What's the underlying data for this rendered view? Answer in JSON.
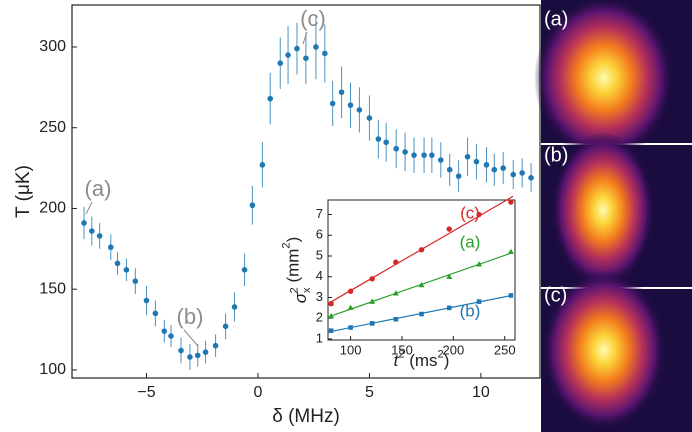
{
  "chart_data": [
    {
      "type": "scatter",
      "x_label": "δ (MHz)",
      "y_label": "T (μK)",
      "xlim": [
        -8.34,
        12.65
      ],
      "ylim": [
        95,
        326
      ],
      "xticks": [
        {
          "value": -5,
          "label": "−5"
        },
        0,
        5,
        10
      ],
      "yticks": [
        100,
        150,
        200,
        250,
        300
      ],
      "annotations": [
        "(a)",
        "(b)",
        "(c)"
      ],
      "annotation_color": "#8c8c8c",
      "series": [
        {
          "color": "#1f77b4",
          "x": [
            -7.8,
            -7.45,
            -7.1,
            -6.6,
            -6.3,
            -5.9,
            -5.5,
            -5.0,
            -4.6,
            -4.2,
            -3.9,
            -3.45,
            -3.05,
            -2.7,
            -2.35,
            -1.9,
            -1.45,
            -1.05,
            -0.6,
            -0.25,
            0.2,
            0.55,
            1.0,
            1.35,
            1.75,
            2.15,
            2.6,
            3.0,
            3.35,
            3.75,
            4.15,
            4.55,
            5.0,
            5.4,
            5.75,
            6.2,
            6.6,
            7.0,
            7.45,
            7.8,
            8.2,
            8.6,
            9.0,
            9.4,
            9.8,
            10.25,
            10.6,
            11.0,
            11.45,
            11.85,
            12.25
          ],
          "values": [
            191,
            186,
            183,
            176,
            166,
            162,
            155,
            143,
            135,
            124,
            121,
            112,
            108,
            109,
            111,
            115,
            127,
            139,
            162,
            202,
            227,
            268,
            290,
            295,
            299,
            293,
            300,
            296,
            265,
            272,
            264,
            261,
            256,
            243,
            241,
            237,
            235,
            233,
            233,
            233,
            230,
            224,
            220,
            232,
            229,
            227,
            224,
            225,
            221,
            222,
            219
          ],
          "errors": [
            10,
            9,
            8,
            8,
            7,
            7,
            8,
            9,
            8,
            7,
            7,
            8,
            8,
            7,
            7,
            7,
            8,
            9,
            10,
            12,
            14,
            16,
            16,
            18,
            16,
            16,
            20,
            18,
            14,
            16,
            14,
            14,
            14,
            12,
            12,
            12,
            12,
            11,
            11,
            11,
            11,
            10,
            10,
            12,
            11,
            11,
            10,
            10,
            9,
            9,
            9
          ]
        }
      ]
    },
    {
      "type": "scatter",
      "x_label": {
        "symbol": "t",
        "sup": "2",
        "unit": " (ms",
        "unit_sup": "2",
        "close": ")"
      },
      "y_label": {
        "symbol": "σ",
        "sub": "x",
        "sup": "2",
        "unit": " (mm",
        "unit_sup": "2",
        "close": ")"
      },
      "xlim": [
        78,
        260
      ],
      "ylim": [
        0.95,
        7.7
      ],
      "xticks": [
        100,
        150,
        200,
        250
      ],
      "yticks": [
        1,
        2,
        3,
        4,
        5,
        6,
        7
      ],
      "x": [
        81,
        100,
        121,
        144,
        169,
        196,
        225,
        256
      ],
      "series": [
        {
          "name": "(c)",
          "color": "#d62728",
          "marker": "circle",
          "values": [
            2.7,
            3.3,
            3.9,
            4.7,
            5.3,
            6.3,
            7.0,
            7.6
          ]
        },
        {
          "name": "(a)",
          "color": "#2ca02c",
          "marker": "triangle",
          "values": [
            2.1,
            2.5,
            2.8,
            3.2,
            3.6,
            4.0,
            4.6,
            5.2
          ]
        },
        {
          "name": "(b)",
          "color": "#1f77b4",
          "marker": "square",
          "values": [
            1.4,
            1.55,
            1.75,
            1.95,
            2.2,
            2.5,
            2.8,
            3.1
          ]
        }
      ]
    }
  ],
  "panels": [
    {
      "label": "(a)"
    },
    {
      "label": "(b)"
    },
    {
      "label": "(c)"
    }
  ]
}
